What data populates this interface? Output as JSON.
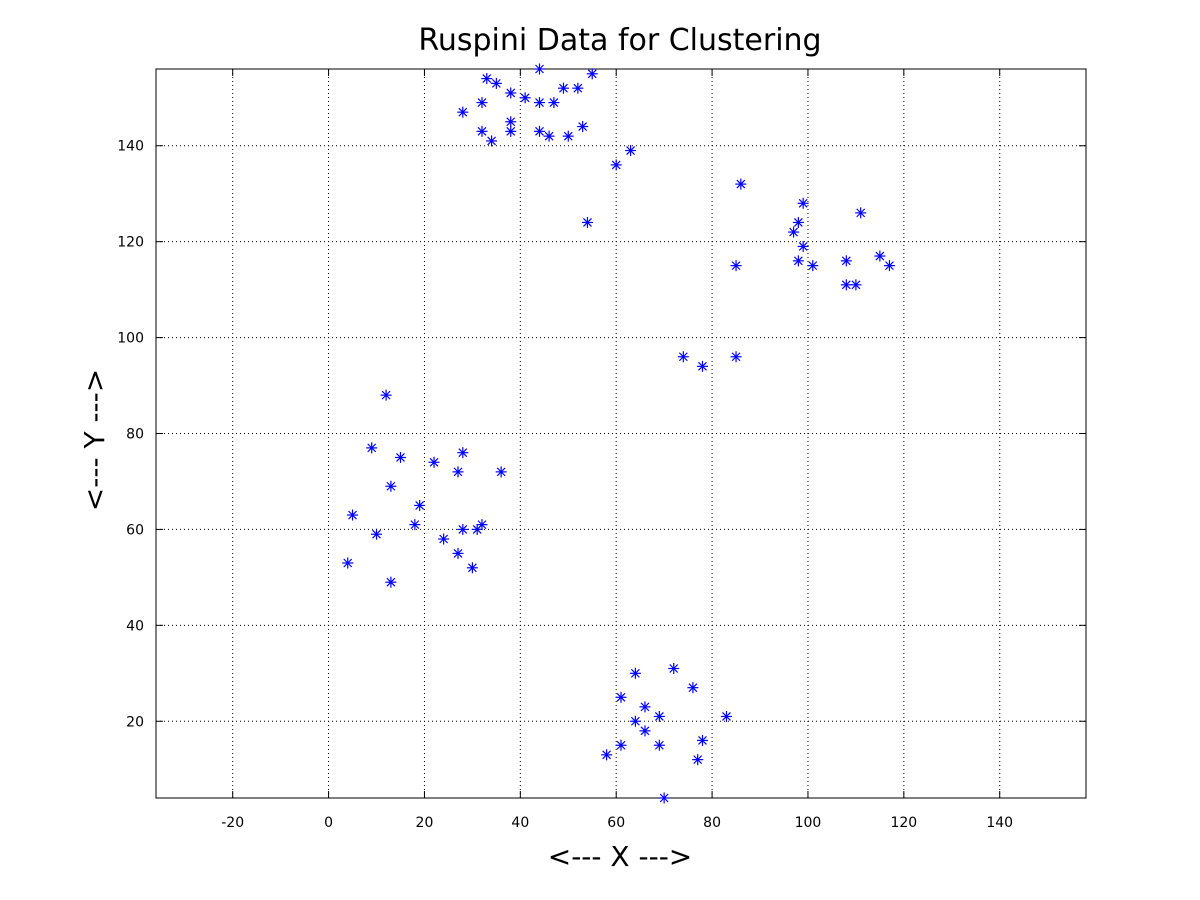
{
  "chart_data": {
    "type": "scatter",
    "title": "Ruspini Data for Clustering",
    "xlabel": "<--- X --->",
    "ylabel": "<--- Y --->",
    "xlim": [
      -36,
      158
    ],
    "ylim": [
      4,
      156
    ],
    "xticks": [
      -20,
      0,
      20,
      40,
      60,
      80,
      100,
      120,
      140
    ],
    "yticks": [
      20,
      40,
      60,
      80,
      100,
      120,
      140
    ],
    "grid": true,
    "marker": "asterisk",
    "marker_color": "#0000ff",
    "series": [
      {
        "points": [
          [
            4,
            53
          ],
          [
            5,
            63
          ],
          [
            10,
            59
          ],
          [
            9,
            77
          ],
          [
            13,
            49
          ],
          [
            13,
            69
          ],
          [
            12,
            88
          ],
          [
            15,
            75
          ],
          [
            18,
            61
          ],
          [
            19,
            65
          ],
          [
            22,
            74
          ],
          [
            27,
            72
          ],
          [
            28,
            76
          ],
          [
            24,
            58
          ],
          [
            27,
            55
          ],
          [
            28,
            60
          ],
          [
            30,
            52
          ],
          [
            31,
            60
          ],
          [
            32,
            61
          ],
          [
            36,
            72
          ],
          [
            28,
            147
          ],
          [
            32,
            149
          ],
          [
            35,
            153
          ],
          [
            33,
            154
          ],
          [
            38,
            151
          ],
          [
            41,
            150
          ],
          [
            38,
            145
          ],
          [
            38,
            143
          ],
          [
            32,
            143
          ],
          [
            34,
            141
          ],
          [
            44,
            156
          ],
          [
            44,
            149
          ],
          [
            44,
            143
          ],
          [
            46,
            142
          ],
          [
            47,
            149
          ],
          [
            49,
            152
          ],
          [
            50,
            142
          ],
          [
            53,
            144
          ],
          [
            52,
            152
          ],
          [
            55,
            155
          ],
          [
            54,
            124
          ],
          [
            60,
            136
          ],
          [
            63,
            139
          ],
          [
            86,
            132
          ],
          [
            85,
            115
          ],
          [
            85,
            96
          ],
          [
            78,
            94
          ],
          [
            74,
            96
          ],
          [
            97,
            122
          ],
          [
            98,
            116
          ],
          [
            98,
            124
          ],
          [
            99,
            119
          ],
          [
            99,
            128
          ],
          [
            101,
            115
          ],
          [
            108,
            111
          ],
          [
            110,
            111
          ],
          [
            108,
            116
          ],
          [
            111,
            126
          ],
          [
            115,
            117
          ],
          [
            117,
            115
          ],
          [
            70,
            4
          ],
          [
            77,
            12
          ],
          [
            83,
            21
          ],
          [
            61,
            15
          ],
          [
            69,
            15
          ],
          [
            78,
            16
          ],
          [
            66,
            18
          ],
          [
            58,
            13
          ],
          [
            64,
            20
          ],
          [
            69,
            21
          ],
          [
            66,
            23
          ],
          [
            61,
            25
          ],
          [
            76,
            27
          ],
          [
            72,
            31
          ],
          [
            64,
            30
          ]
        ]
      }
    ]
  }
}
